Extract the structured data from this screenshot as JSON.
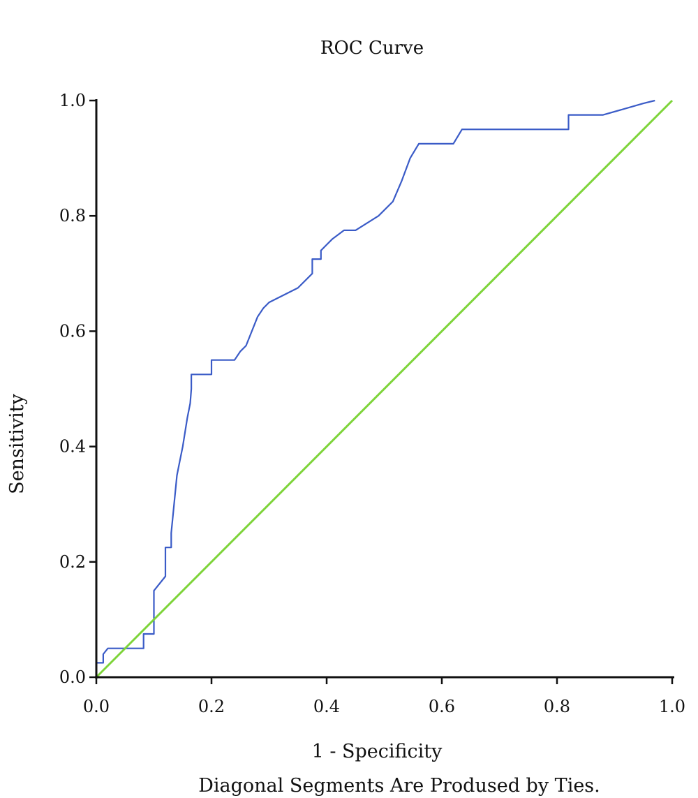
{
  "chart_data": {
    "type": "line",
    "title": "ROC Curve",
    "xlabel": "1 - Specificity",
    "ylabel": "Sensitivity",
    "footnote": "Diagonal Segments Are Prodused by Ties.",
    "xlim": [
      0,
      1
    ],
    "ylim": [
      0,
      1
    ],
    "x_ticks": [
      "0.0",
      "0.2",
      "0.4",
      "0.6",
      "0.8",
      "1.0"
    ],
    "y_ticks": [
      "0.0",
      "0.2",
      "0.4",
      "0.6",
      "0.8",
      "1.0"
    ],
    "grid": false,
    "colors": {
      "roc": "#3a5bc7",
      "reference": "#7ed43a"
    },
    "series": [
      {
        "key": "roc",
        "x": [
          0.0,
          0.0,
          0.012,
          0.012,
          0.02,
          0.02,
          0.082,
          0.082,
          0.1,
          0.1,
          0.1,
          0.12,
          0.12,
          0.13,
          0.13,
          0.14,
          0.145,
          0.15,
          0.15,
          0.158,
          0.163,
          0.165,
          0.165,
          0.2,
          0.2,
          0.24,
          0.25,
          0.26,
          0.27,
          0.28,
          0.29,
          0.3,
          0.35,
          0.375,
          0.375,
          0.39,
          0.39,
          0.4,
          0.41,
          0.43,
          0.45,
          0.49,
          0.515,
          0.53,
          0.545,
          0.56,
          0.565,
          0.62,
          0.635,
          0.82,
          0.82,
          0.88,
          0.95,
          0.97
        ],
        "y": [
          0.0,
          0.025,
          0.025,
          0.04,
          0.05,
          0.05,
          0.05,
          0.075,
          0.075,
          0.1,
          0.15,
          0.175,
          0.225,
          0.225,
          0.25,
          0.35,
          0.375,
          0.4,
          0.4,
          0.45,
          0.475,
          0.5,
          0.525,
          0.525,
          0.55,
          0.55,
          0.565,
          0.575,
          0.6,
          0.625,
          0.64,
          0.65,
          0.675,
          0.7,
          0.725,
          0.725,
          0.74,
          0.75,
          0.76,
          0.775,
          0.775,
          0.8,
          0.825,
          0.86,
          0.9,
          0.925,
          0.925,
          0.925,
          0.95,
          0.95,
          0.975,
          0.975,
          0.995,
          1.0
        ]
      },
      {
        "key": "reference",
        "x": [
          0,
          1
        ],
        "y": [
          0,
          1
        ]
      }
    ]
  }
}
